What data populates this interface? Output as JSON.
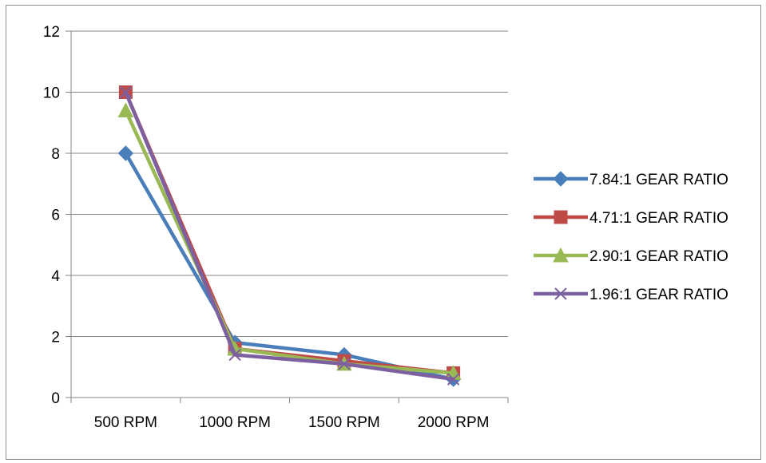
{
  "chart_data": {
    "type": "line",
    "title": "",
    "xlabel": "",
    "ylabel": "",
    "categories": [
      "500 RPM",
      "1000 RPM",
      "1500 RPM",
      "2000 RPM"
    ],
    "ylim": [
      0,
      12
    ],
    "yticks": [
      "0",
      "2",
      "4",
      "6",
      "8",
      "10",
      "12"
    ],
    "grid": "horizontal",
    "legend_position": "right",
    "series": [
      {
        "name": "7.84:1 GEAR RATIO",
        "values": [
          8.0,
          1.8,
          1.4,
          0.6
        ],
        "color": "#4A7EBB",
        "marker": "diamond"
      },
      {
        "name": "4.71:1 GEAR RATIO",
        "values": [
          10.0,
          1.6,
          1.2,
          0.8
        ],
        "color": "#BE4B48",
        "marker": "square"
      },
      {
        "name": "2.90:1 GEAR RATIO",
        "values": [
          9.4,
          1.6,
          1.1,
          0.8
        ],
        "color": "#98B954",
        "marker": "triangle"
      },
      {
        "name": "1.96:1 GEAR RATIO",
        "values": [
          10.0,
          1.4,
          1.1,
          0.6
        ],
        "color": "#7D60A0",
        "marker": "x"
      }
    ]
  }
}
